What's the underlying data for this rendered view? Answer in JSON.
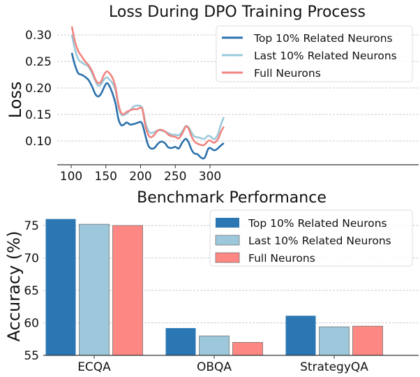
{
  "chart_data": [
    {
      "type": "line",
      "title": "Loss During DPO Training Process",
      "xlabel": "",
      "ylabel": "Loss",
      "xlim": [
        90,
        330
      ],
      "ylim": [
        0.055,
        0.32
      ],
      "xticks": [
        100,
        150,
        200,
        250,
        300
      ],
      "yticks": [
        "0.10",
        "0.15",
        "0.20",
        "0.25",
        "0.30"
      ],
      "grid": "y dashed",
      "legend_position": "top-right",
      "x": [
        101,
        105,
        110,
        115,
        120,
        125,
        130,
        135,
        139,
        143,
        147,
        151,
        155,
        160,
        164,
        168,
        172,
        176,
        180,
        185,
        190,
        195,
        200,
        203,
        207,
        211,
        215,
        220,
        225,
        230,
        235,
        240,
        245,
        250,
        255,
        260,
        265,
        269,
        273,
        277,
        282,
        286,
        290,
        293,
        297,
        300,
        305,
        308,
        312,
        316,
        320
      ],
      "series": [
        {
          "name": "Top 10% Related Neurons",
          "color": "#2b71ad",
          "values": [
            0.266,
            0.245,
            0.228,
            0.225,
            0.221,
            0.215,
            0.203,
            0.188,
            0.184,
            0.189,
            0.2,
            0.209,
            0.204,
            0.188,
            0.17,
            0.142,
            0.13,
            0.131,
            0.135,
            0.131,
            0.132,
            0.134,
            0.136,
            0.13,
            0.11,
            0.092,
            0.086,
            0.087,
            0.095,
            0.099,
            0.096,
            0.088,
            0.087,
            0.089,
            0.086,
            0.097,
            0.104,
            0.098,
            0.085,
            0.077,
            0.075,
            0.07,
            0.067,
            0.07,
            0.084,
            0.087,
            0.083,
            0.083,
            0.087,
            0.092,
            0.096
          ]
        },
        {
          "name": "Last 10% Related Neurons",
          "color": "#9bc9db",
          "values": [
            0.3,
            0.275,
            0.255,
            0.248,
            0.244,
            0.24,
            0.228,
            0.213,
            0.204,
            0.207,
            0.215,
            0.22,
            0.216,
            0.208,
            0.195,
            0.165,
            0.15,
            0.149,
            0.152,
            0.158,
            0.165,
            0.167,
            0.166,
            0.16,
            0.135,
            0.12,
            0.115,
            0.117,
            0.12,
            0.12,
            0.118,
            0.115,
            0.112,
            0.112,
            0.111,
            0.118,
            0.128,
            0.126,
            0.117,
            0.109,
            0.107,
            0.106,
            0.104,
            0.105,
            0.11,
            0.109,
            0.104,
            0.105,
            0.115,
            0.132,
            0.145
          ]
        },
        {
          "name": "Full Neurons",
          "color": "#f0847f",
          "values": [
            0.316,
            0.29,
            0.27,
            0.26,
            0.25,
            0.243,
            0.232,
            0.216,
            0.209,
            0.212,
            0.224,
            0.231,
            0.228,
            0.218,
            0.2,
            0.17,
            0.153,
            0.151,
            0.155,
            0.158,
            0.16,
            0.16,
            0.163,
            0.158,
            0.128,
            0.112,
            0.107,
            0.112,
            0.12,
            0.121,
            0.118,
            0.112,
            0.109,
            0.108,
            0.105,
            0.114,
            0.127,
            0.124,
            0.11,
            0.1,
            0.095,
            0.093,
            0.092,
            0.094,
            0.1,
            0.101,
            0.097,
            0.098,
            0.105,
            0.118,
            0.127
          ]
        }
      ]
    },
    {
      "type": "bar",
      "title": "Benchmark Performance",
      "xlabel": "",
      "ylabel": "Accuracy (%)",
      "ylim": [
        55,
        77
      ],
      "yticks": [
        "55",
        "60",
        "65",
        "70",
        "75"
      ],
      "grid": "y dashed",
      "legend_position": "top-right",
      "categories": [
        "ECQA",
        "OBQA",
        "StrategyQA"
      ],
      "series": [
        {
          "name": "Top 10% Related Neurons",
          "color": "#2b77b3",
          "values": [
            76.0,
            59.2,
            61.1
          ]
        },
        {
          "name": "Last 10% Related Neurons",
          "color": "#9dc8db",
          "values": [
            75.2,
            58.0,
            59.4
          ]
        },
        {
          "name": "Full Neurons",
          "color": "#fd8883",
          "values": [
            75.0,
            57.0,
            59.5
          ]
        }
      ]
    }
  ]
}
